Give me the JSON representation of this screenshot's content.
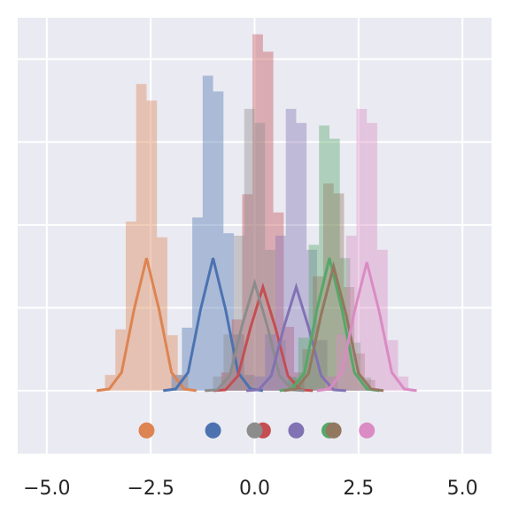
{
  "chart_data": {
    "type": "distribution",
    "xlim": [
      -5.7,
      5.7
    ],
    "xticks": [
      {
        "value": -5,
        "label": "−5.0"
      },
      {
        "value": -2.5,
        "label": "−2.5"
      },
      {
        "value": 0,
        "label": "0.0"
      },
      {
        "value": 2.5,
        "label": "2.5"
      },
      {
        "value": 5,
        "label": "5.0"
      }
    ],
    "ylim": [
      -0.76,
      4.5
    ],
    "yticks": [
      0,
      1,
      2,
      3,
      4
    ],
    "grid": true,
    "marker_y": -0.48,
    "series": [
      {
        "color": "#dd8452",
        "mean": -2.6,
        "bins": [
          -3.6,
          -3.35,
          -3.1,
          -2.85,
          -2.6,
          -2.35,
          -2.1,
          -1.85,
          -1.6
        ],
        "counts": [
          0.19,
          0.74,
          2.04,
          3.7,
          3.5,
          1.85,
          0.67,
          0.19
        ],
        "kde_x": [
          -3.8,
          -3.5,
          -3.2,
          -2.9,
          -2.6,
          -2.3,
          -2.0,
          -1.7,
          -1.4
        ],
        "kde_y": [
          0,
          0.02,
          0.22,
          0.98,
          1.6,
          0.98,
          0.22,
          0.02,
          0
        ]
      },
      {
        "color": "#4c72b0",
        "mean": -1.0,
        "bins": [
          -2.0,
          -1.75,
          -1.5,
          -1.25,
          -1.0,
          -0.75,
          -0.5,
          -0.25,
          0
        ],
        "counts": [
          0.19,
          0.76,
          2.09,
          3.8,
          3.61,
          1.9,
          0.68,
          0.19
        ],
        "kde_x": [
          -2.2,
          -1.9,
          -1.6,
          -1.3,
          -1.0,
          -0.7,
          -0.4,
          -0.1,
          0.2
        ],
        "kde_y": [
          0,
          0.02,
          0.22,
          0.98,
          1.6,
          0.98,
          0.22,
          0.02,
          0
        ]
      },
      {
        "color": "#c44e52",
        "mean": 0.2,
        "bins": [
          -0.8,
          -0.55,
          -0.3,
          -0.05,
          0.2,
          0.45,
          0.7,
          0.95,
          1.2
        ],
        "counts": [
          0.22,
          0.86,
          2.37,
          4.3,
          4.09,
          2.15,
          0.77,
          0.22
        ],
        "kde_x": [
          -1.0,
          -0.7,
          -0.4,
          -0.1,
          0.2,
          0.5,
          0.8,
          1.1,
          1.4
        ],
        "kde_y": [
          0,
          0.01,
          0.18,
          0.76,
          1.25,
          0.76,
          0.18,
          0.01,
          0
        ]
      },
      {
        "color": "#8c8c8c",
        "mean": 0.0,
        "bins": [
          -1.0,
          -0.75,
          -0.5,
          -0.25,
          0,
          0.25,
          0.5,
          0.75,
          1.0
        ],
        "counts": [
          0.17,
          0.68,
          1.87,
          3.4,
          3.23,
          1.7,
          0.61,
          0.17
        ],
        "kde_x": [
          -1.2,
          -0.9,
          -0.6,
          -0.3,
          0,
          0.3,
          0.6,
          0.9,
          1.2
        ],
        "kde_y": [
          0,
          0.01,
          0.18,
          0.79,
          1.3,
          0.79,
          0.18,
          0.01,
          0
        ]
      },
      {
        "color": "#8172b3",
        "mean": 1.0,
        "bins": [
          0,
          0.25,
          0.5,
          0.75,
          1.0,
          1.25,
          1.5,
          1.75,
          2.0
        ],
        "counts": [
          0.17,
          0.68,
          1.87,
          3.4,
          3.23,
          1.7,
          0.61,
          0.17
        ],
        "kde_x": [
          -0.2,
          0.1,
          0.4,
          0.7,
          1.0,
          1.3,
          1.6,
          1.9,
          2.2
        ],
        "kde_y": [
          0,
          0.01,
          0.18,
          0.76,
          1.25,
          0.76,
          0.18,
          0.01,
          0
        ]
      },
      {
        "color": "#55a868",
        "mean": 1.8,
        "bins": [
          0.8,
          1.05,
          1.3,
          1.55,
          1.8,
          2.05,
          2.3,
          2.55,
          2.8
        ],
        "counts": [
          0.16,
          0.64,
          1.76,
          3.2,
          3.04,
          1.6,
          0.58,
          0.16
        ],
        "kde_x": [
          0.6,
          0.9,
          1.2,
          1.5,
          1.8,
          2.1,
          2.4,
          2.7,
          3.0
        ],
        "kde_y": [
          0,
          0.02,
          0.22,
          0.98,
          1.6,
          0.98,
          0.22,
          0.02,
          0
        ]
      },
      {
        "color": "#937860",
        "mean": 1.9,
        "bins": [
          0.9,
          1.15,
          1.4,
          1.65,
          1.9,
          2.15,
          2.4,
          2.65,
          2.9
        ],
        "counts": [
          0.13,
          0.5,
          1.38,
          2.5,
          2.38,
          1.25,
          0.45,
          0.13
        ],
        "kde_x": [
          0.7,
          1.0,
          1.3,
          1.6,
          1.9,
          2.2,
          2.5,
          2.8,
          3.1
        ],
        "kde_y": [
          0,
          0.02,
          0.21,
          0.92,
          1.5,
          0.92,
          0.21,
          0.02,
          0
        ]
      },
      {
        "color": "#da8bc3",
        "mean": 2.7,
        "bins": [
          1.7,
          1.95,
          2.2,
          2.45,
          2.7,
          2.95,
          3.2,
          3.45,
          3.7
        ],
        "counts": [
          0.17,
          0.68,
          1.87,
          3.4,
          3.23,
          1.7,
          0.61,
          0.17
        ],
        "kde_x": [
          1.5,
          1.8,
          2.1,
          2.4,
          2.7,
          3.0,
          3.3,
          3.6,
          3.9
        ],
        "kde_y": [
          0,
          0.02,
          0.22,
          0.95,
          1.55,
          0.95,
          0.22,
          0.02,
          0
        ]
      }
    ]
  }
}
